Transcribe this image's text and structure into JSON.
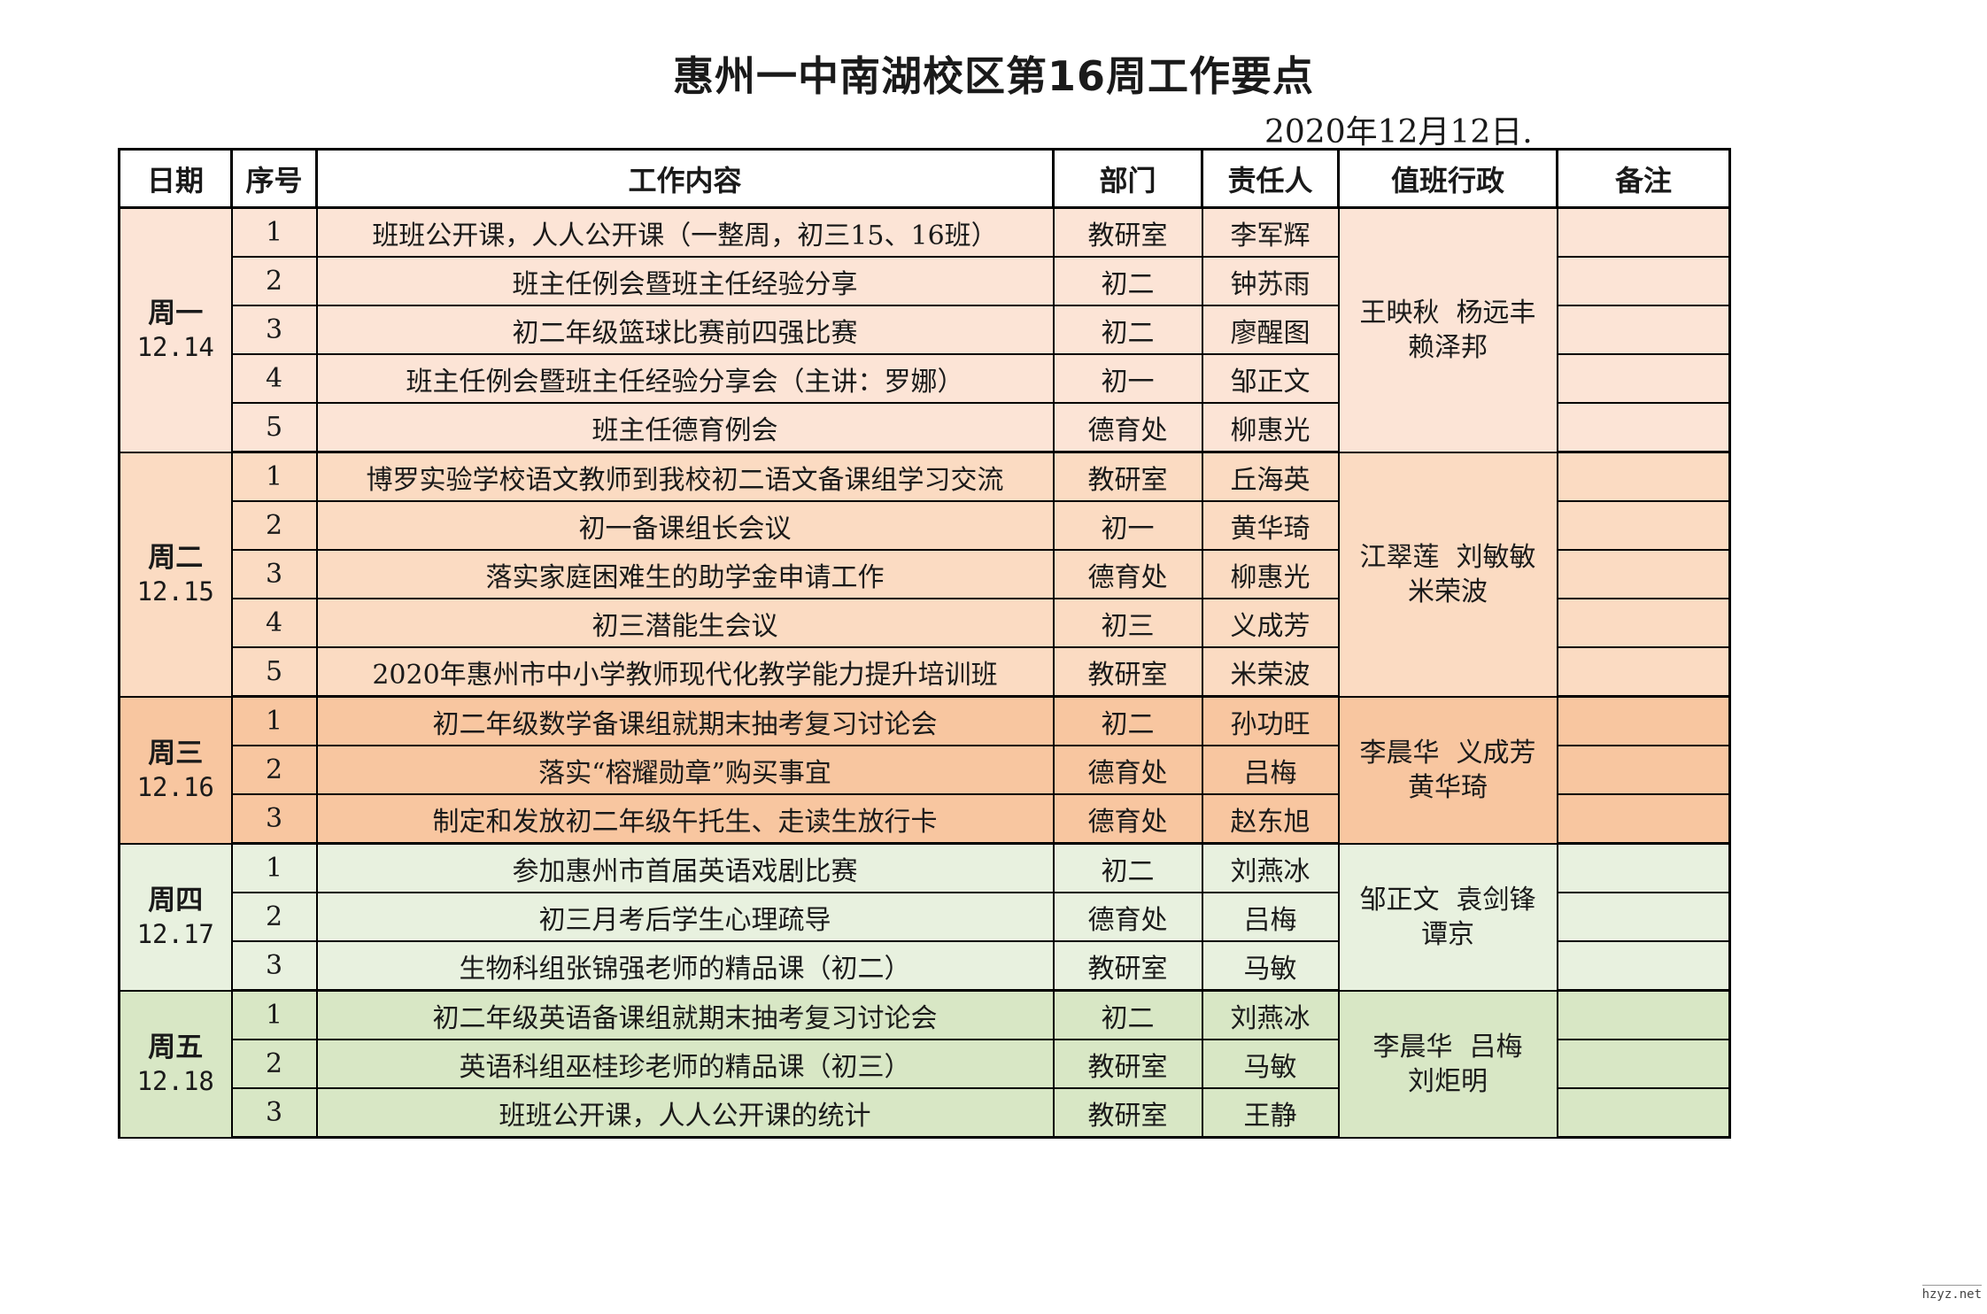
{
  "title": "惠州一中南湖校区第16周工作要点",
  "date_line": "2020年12月12日.",
  "headers": [
    "日期",
    "序号",
    "工作内容",
    "部门",
    "责任人",
    "值班行政",
    "备注"
  ],
  "watermark": "hzyz.net",
  "days": [
    {
      "name": "周一",
      "date": "12.14",
      "bg": "#FCE4D6",
      "duty": [
        "王映秋  杨远丰",
        "赖泽邦"
      ],
      "rows": [
        {
          "no": "1",
          "content": "班班公开课，人人公开课（一整周，初三15、16班）",
          "dept": "教研室",
          "person": "李军辉",
          "note": ""
        },
        {
          "no": "2",
          "content": "班主任例会暨班主任经验分享",
          "dept": "初二",
          "person": "钟苏雨",
          "note": ""
        },
        {
          "no": "3",
          "content": "初二年级篮球比赛前四强比赛",
          "dept": "初二",
          "person": "廖醒图",
          "note": ""
        },
        {
          "no": "4",
          "content": "班主任例会暨班主任经验分享会（主讲：罗娜）",
          "dept": "初一",
          "person": "邹正文",
          "note": ""
        },
        {
          "no": "5",
          "content": "班主任德育例会",
          "dept": "德育处",
          "person": "柳惠光",
          "note": ""
        }
      ]
    },
    {
      "name": "周二",
      "date": "12.15",
      "bg": "#FBDBC2",
      "duty": [
        "江翠莲  刘敏敏",
        "米荣波"
      ],
      "rows": [
        {
          "no": "1",
          "content": "博罗实验学校语文教师到我校初二语文备课组学习交流",
          "dept": "教研室",
          "person": "丘海英",
          "note": ""
        },
        {
          "no": "2",
          "content": "初一备课组长会议",
          "dept": "初一",
          "person": "黄华琦",
          "note": ""
        },
        {
          "no": "3",
          "content": "落实家庭困难生的助学金申请工作",
          "dept": "德育处",
          "person": "柳惠光",
          "note": ""
        },
        {
          "no": "4",
          "content": "初三潜能生会议",
          "dept": "初三",
          "person": "义成芳",
          "note": ""
        },
        {
          "no": "5",
          "content": "2020年惠州市中小学教师现代化教学能力提升培训班",
          "dept": "教研室",
          "person": "米荣波",
          "note": ""
        }
      ]
    },
    {
      "name": "周三",
      "date": "12.16",
      "bg": "#F8C6A0",
      "duty": [
        "李晨华  义成芳",
        "黄华琦"
      ],
      "rows": [
        {
          "no": "1",
          "content": "初二年级数学备课组就期末抽考复习讨论会",
          "dept": "初二",
          "person": "孙功旺",
          "note": ""
        },
        {
          "no": "2",
          "content": "落实“榕耀勋章”购买事宜",
          "dept": "德育处",
          "person": "吕梅",
          "note": ""
        },
        {
          "no": "3",
          "content": "制定和发放初二年级午托生、走读生放行卡",
          "dept": "德育处",
          "person": "赵东旭",
          "note": ""
        }
      ]
    },
    {
      "name": "周四",
      "date": "12.17",
      "bg": "#E8F1DF",
      "duty": [
        "邹正文  袁剑锋",
        "谭京"
      ],
      "rows": [
        {
          "no": "1",
          "content": "参加惠州市首届英语戏剧比赛",
          "dept": "初二",
          "person": "刘燕冰",
          "note": ""
        },
        {
          "no": "2",
          "content": "初三月考后学生心理疏导",
          "dept": "德育处",
          "person": "吕梅",
          "note": ""
        },
        {
          "no": "3",
          "content": "生物科组张锦强老师的精品课（初二）",
          "dept": "教研室",
          "person": "马敏",
          "note": ""
        }
      ]
    },
    {
      "name": "周五",
      "date": "12.18",
      "bg": "#D8E7C5",
      "duty": [
        "李晨华  吕梅",
        "刘炬明"
      ],
      "rows": [
        {
          "no": "1",
          "content": "初二年级英语备课组就期末抽考复习讨论会",
          "dept": "初二",
          "person": "刘燕冰",
          "note": ""
        },
        {
          "no": "2",
          "content": "英语科组巫桂珍老师的精品课（初三）",
          "dept": "教研室",
          "person": "马敏",
          "note": ""
        },
        {
          "no": "3",
          "content": "班班公开课，人人公开课的统计",
          "dept": "教研室",
          "person": "王静",
          "note": ""
        }
      ]
    }
  ]
}
